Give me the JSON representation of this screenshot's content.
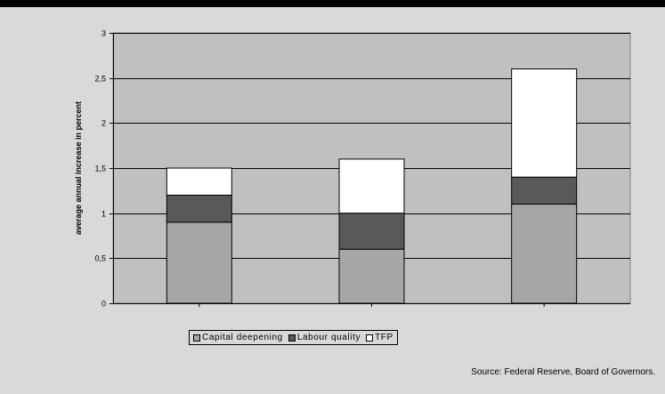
{
  "chart_data": {
    "type": "bar",
    "stacked": true,
    "title": "",
    "xlabel": "",
    "ylabel": "average annual increase in percent",
    "categories": [
      "",
      "",
      ""
    ],
    "ylim": [
      0,
      3
    ],
    "yticks": [
      "0",
      "0,5",
      "1",
      "1,5",
      "2",
      "2,5",
      "3"
    ],
    "grid": true,
    "legend_position": "bottom",
    "series": [
      {
        "name": "Capital deepening",
        "values": [
          0.9,
          0.6,
          1.1
        ],
        "color": "#a6a6a6"
      },
      {
        "name": "Labour quality",
        "values": [
          0.3,
          0.4,
          0.3
        ],
        "color": "#595959"
      },
      {
        "name": "TFP",
        "values": [
          0.3,
          0.6,
          1.2
        ],
        "color": "#ffffff"
      }
    ]
  },
  "source": "Source: Federal Reserve, Board of  Governors.",
  "colors": {
    "background": "#d9d9d9",
    "plot_area": "#c0c0c0",
    "top_bar": "#000000"
  }
}
